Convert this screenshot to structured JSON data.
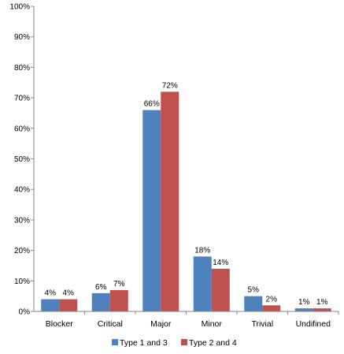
{
  "chart_data": {
    "type": "bar",
    "title": "",
    "xlabel": "",
    "ylabel": "",
    "categories": [
      "Blocker",
      "Critical",
      "Major",
      "Minor",
      "Trivial",
      "Undifined"
    ],
    "series": [
      {
        "name": "Type 1 and 3",
        "values": [
          4,
          6,
          66,
          18,
          5,
          1
        ],
        "labels": [
          "4%",
          "6%",
          "66%",
          "18%",
          "5%",
          "1%"
        ],
        "color": "#4F81BD"
      },
      {
        "name": "Type 2 and 4",
        "values": [
          4,
          7,
          72,
          14,
          2,
          1
        ],
        "labels": [
          "4%",
          "7%",
          "72%",
          "14%",
          "2%",
          "1%"
        ],
        "color": "#C0504D"
      }
    ],
    "ylim": [
      0,
      100
    ],
    "yticks": [
      0,
      10,
      20,
      30,
      40,
      50,
      60,
      70,
      80,
      90,
      100
    ],
    "ytick_labels": [
      "0%",
      "10%",
      "20%",
      "30%",
      "40%",
      "50%",
      "60%",
      "70%",
      "80%",
      "90%",
      "100%"
    ],
    "grid": false,
    "legend_position": "bottom"
  }
}
